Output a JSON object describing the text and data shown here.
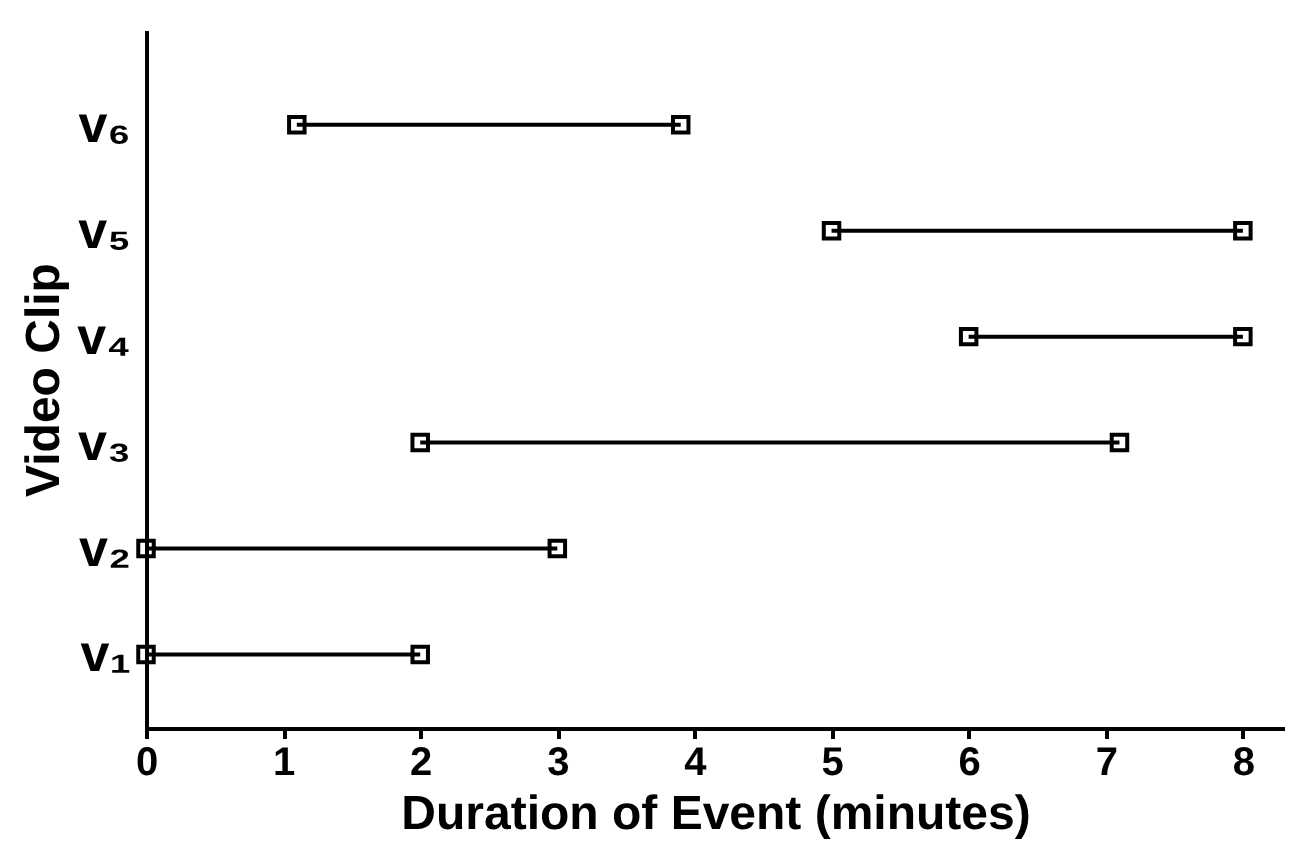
{
  "chart_data": {
    "type": "bar",
    "orientation": "horizontal",
    "xlabel": "Duration of Event (minutes)",
    "ylabel": "Video Clip",
    "categories": [
      "v₆",
      "v₅",
      "v₄",
      "v₃",
      "v₂",
      "v₁"
    ],
    "series": [
      {
        "color": "#000000",
        "base": [
          1.1,
          5.0,
          6.0,
          2.0,
          0.0,
          0.0
        ],
        "values": [
          2.8,
          3.0,
          2.0,
          5.1,
          3.0,
          2.0
        ]
      },
      {
        "type": "scatter",
        "color": "#000000",
        "marker": "square",
        "values": [
          1.1,
          5.0,
          6.0,
          2.0,
          0.0,
          0.0
        ]
      },
      {
        "type": "scatter",
        "color": "#000000",
        "marker": "square",
        "values": [
          3.9,
          8.0,
          8.0,
          7.1,
          3.0,
          2.0
        ]
      }
    ],
    "grid": false,
    "xlim": [
      0,
      8.3
    ],
    "xticks": [
      0,
      1,
      2,
      3,
      4,
      5,
      6,
      7,
      8
    ]
  }
}
